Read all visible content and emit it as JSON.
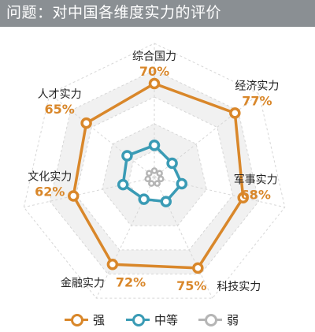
{
  "header": {
    "title": "问题：对中国各维度实力的评价"
  },
  "chart_data": {
    "type": "radar",
    "title": "问题：对中国各维度实力的评价",
    "categories": [
      "综合国力",
      "经济实力",
      "军事实力",
      "科技实力",
      "金融实力",
      "文化实力",
      "人才实力"
    ],
    "series": [
      {
        "name": "强",
        "values": [
          70,
          77,
          68,
          75,
          72,
          62,
          65
        ],
        "color": "#d9872a"
      },
      {
        "name": "中等",
        "values": [
          24,
          17,
          21,
          20,
          18,
          24,
          26
        ],
        "color": "#3a9bb5"
      },
      {
        "name": "弱",
        "values": [
          5,
          5,
          5,
          5,
          5,
          5,
          5
        ],
        "color": "#b5b5b5"
      }
    ],
    "data_labels": [
      "70%",
      "77%",
      "68%",
      "75%",
      "72%",
      "62%",
      "65%"
    ],
    "rlim": [
      0,
      100
    ],
    "grid": true,
    "legend_position": "bottom"
  },
  "colors": {
    "header_bg": "#8a8f93",
    "label_accent": "#d9872a"
  }
}
